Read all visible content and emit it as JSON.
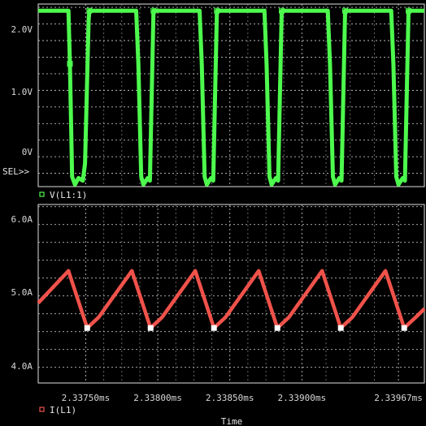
{
  "colors": {
    "voltage": "#4dfa4d",
    "current": "#f0524a",
    "background": "#000000",
    "grid": "#bdbdbd",
    "text": "#e6e6e6"
  },
  "sel_label": "SEL>>",
  "x_axis_title": "Time",
  "chart_data": [
    {
      "type": "line",
      "y_ticks": [
        "2.0V",
        "1.0V",
        "0V"
      ],
      "y_tick_values": [
        2.0,
        1.0,
        0.0
      ],
      "ylim": [
        -0.45,
        2.3
      ],
      "xlim": [
        2.33717,
        2.33985
      ],
      "x": [
        2.33717,
        2.33738,
        2.33739,
        2.337405,
        2.337425,
        2.33745,
        2.33748,
        2.337495,
        2.33752,
        2.337525,
        2.33785,
        2.337865,
        2.337885,
        2.3379,
        2.33793,
        2.337945,
        2.33797,
        2.33829,
        2.338305,
        2.338325,
        2.33834,
        2.33837,
        2.338385,
        2.33841,
        2.33874,
        2.338755,
        2.338775,
        2.33879,
        2.33882,
        2.338835,
        2.33886,
        2.33918,
        2.339195,
        2.339215,
        2.33923,
        2.33926,
        2.339275,
        2.3393,
        2.33962,
        2.339635,
        2.339655,
        2.33967,
        2.3397,
        2.339715,
        2.33974,
        2.33985
      ],
      "series": [
        {
          "name": "V(L1:1)",
          "values": [
            2.2,
            2.2,
            1.4,
            -0.3,
            -0.42,
            -0.32,
            -0.36,
            -0.1,
            2.05,
            2.2,
            2.2,
            1.4,
            -0.3,
            -0.42,
            -0.32,
            -0.36,
            2.2,
            2.2,
            1.4,
            -0.3,
            -0.42,
            -0.32,
            -0.36,
            2.2,
            2.2,
            1.4,
            -0.3,
            -0.42,
            -0.32,
            -0.36,
            2.2,
            2.2,
            1.4,
            -0.3,
            -0.42,
            -0.32,
            -0.36,
            2.2,
            2.2,
            1.4,
            -0.3,
            -0.42,
            -0.32,
            -0.36,
            2.2,
            2.2
          ]
        }
      ]
    },
    {
      "type": "line",
      "y_ticks": [
        "6.0A",
        "5.0A",
        "4.0A"
      ],
      "y_tick_values": [
        6.0,
        5.0,
        4.0
      ],
      "ylim": [
        3.78,
        6.28
      ],
      "xlim": [
        2.33717,
        2.33985
      ],
      "x_ticks": [
        "2.33750ms",
        "2.33800ms",
        "2.33850ms",
        "2.33900ms",
        "2.33967ms"
      ],
      "x_tick_values": [
        2.3375,
        2.338,
        2.3385,
        2.339,
        2.33967
      ],
      "x": [
        2.33717,
        2.33738,
        2.33751,
        2.33759,
        2.33782,
        2.33795,
        2.33803,
        2.33826,
        2.33839,
        2.33847,
        2.3387,
        2.33883,
        2.33891,
        2.33914,
        2.33927,
        2.33935,
        2.33958,
        2.33971,
        2.33979,
        2.33985
      ],
      "series": [
        {
          "name": "I(L1)",
          "values": [
            4.9,
            5.35,
            4.55,
            4.7,
            5.35,
            4.55,
            4.7,
            5.35,
            4.55,
            4.7,
            5.35,
            4.55,
            4.7,
            5.35,
            4.55,
            4.7,
            5.35,
            4.55,
            4.7,
            4.82
          ]
        }
      ]
    }
  ]
}
